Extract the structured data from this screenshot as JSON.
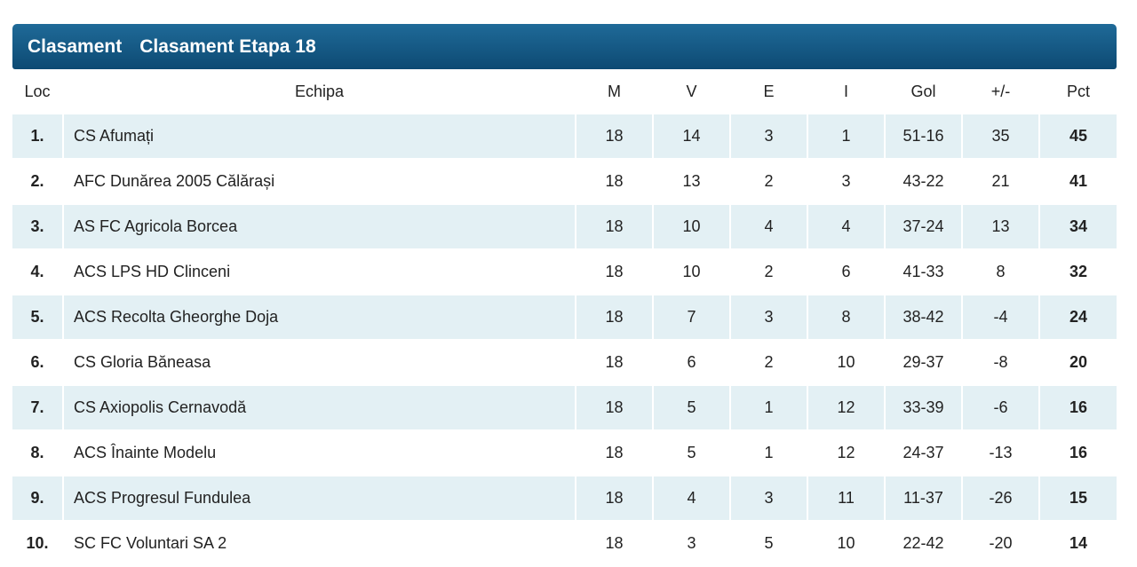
{
  "header": {
    "tabs": [
      "Clasament",
      "Clasament Etapa 18"
    ]
  },
  "table": {
    "columns": [
      "Loc",
      "Echipa",
      "M",
      "V",
      "E",
      "I",
      "Gol",
      "+/-",
      "Pct"
    ],
    "rows": [
      [
        "1.",
        "CS Afumați",
        "18",
        "14",
        "3",
        "1",
        "51-16",
        "35",
        "45"
      ],
      [
        "2.",
        "AFC Dunărea 2005 Călărași",
        "18",
        "13",
        "2",
        "3",
        "43-22",
        "21",
        "41"
      ],
      [
        "3.",
        "AS FC Agricola Borcea",
        "18",
        "10",
        "4",
        "4",
        "37-24",
        "13",
        "34"
      ],
      [
        "4.",
        "ACS LPS HD Clinceni",
        "18",
        "10",
        "2",
        "6",
        "41-33",
        "8",
        "32"
      ],
      [
        "5.",
        "ACS Recolta Gheorghe Doja",
        "18",
        "7",
        "3",
        "8",
        "38-42",
        "-4",
        "24"
      ],
      [
        "6.",
        "CS Gloria Băneasa",
        "18",
        "6",
        "2",
        "10",
        "29-37",
        "-8",
        "20"
      ],
      [
        "7.",
        "CS Axiopolis Cernavodă",
        "18",
        "5",
        "1",
        "12",
        "33-39",
        "-6",
        "16"
      ],
      [
        "8.",
        "ACS Înainte Modelu",
        "18",
        "5",
        "1",
        "12",
        "24-37",
        "-13",
        "16"
      ],
      [
        "9.",
        "ACS Progresul Fundulea",
        "18",
        "4",
        "3",
        "11",
        "11-37",
        "-26",
        "15"
      ],
      [
        "10.",
        "SC FC Voluntari SA 2",
        "18",
        "3",
        "5",
        "10",
        "22-42",
        "-20",
        "14"
      ]
    ]
  }
}
